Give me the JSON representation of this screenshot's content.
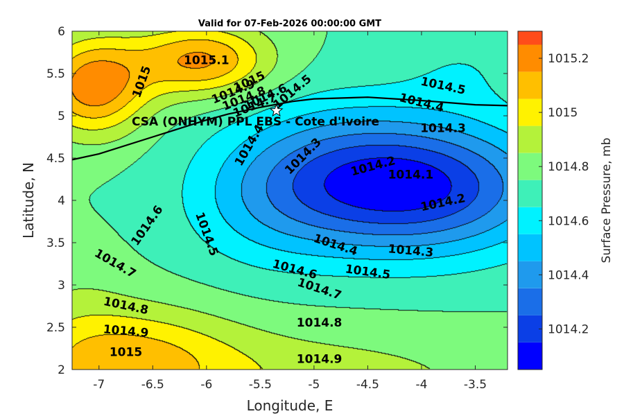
{
  "chart_data": {
    "type": "contour",
    "title": "Valid for 07-Feb-2026 00:00:00 GMT",
    "xlabel": "Longitude, E",
    "ylabel": "Latitude, N",
    "xlim": [
      -7.25,
      -3.2
    ],
    "ylim": [
      2,
      6
    ],
    "xticks": [
      -7,
      -6.5,
      -6,
      -5.5,
      -5,
      -4.5,
      -4,
      -3.5
    ],
    "yticks": [
      2,
      2.5,
      3,
      3.5,
      4,
      4.5,
      5,
      5.5,
      6
    ],
    "colorbar": {
      "label": "Surface Pressure, mb",
      "range": [
        1014.05,
        1015.3
      ],
      "levels": [
        1014.05,
        1014.15,
        1014.25,
        1014.35,
        1014.45,
        1014.55,
        1014.65,
        1014.75,
        1014.85,
        1014.95,
        1015.05,
        1015.15,
        1015.25,
        1015.3
      ],
      "colors": [
        "#0000ff",
        "#0b3fe6",
        "#1a6ee8",
        "#1f9aed",
        "#00c3ff",
        "#00f2ff",
        "#3ef0b8",
        "#7dfa7d",
        "#b4f23a",
        "#fff200",
        "#ffbf00",
        "#ff8c00",
        "#ff4c1a",
        "#ff0000"
      ],
      "ticks": [
        1014.2,
        1014.4,
        1014.6,
        1014.8,
        1015,
        1015.2
      ],
      "tick_labels": [
        "1014.2",
        "1014.4",
        "1014.6",
        "1014.8",
        "1015",
        "1015.2"
      ]
    },
    "pressure_field": {
      "background": 1014.75,
      "blobs": [
        {
          "lon": -4.0,
          "lat": 4.15,
          "slon": 0.85,
          "slat": 0.55,
          "amp": -0.58
        },
        {
          "lon": -4.9,
          "lat": 4.35,
          "slon": 0.7,
          "slat": 0.6,
          "amp": -0.22
        },
        {
          "lon": -5.5,
          "lat": 3.9,
          "slon": 0.55,
          "slat": 0.55,
          "amp": -0.12
        },
        {
          "lon": -3.6,
          "lat": 5.6,
          "slon": 0.45,
          "slat": 0.35,
          "amp": -0.08
        },
        {
          "lon": -7.05,
          "lat": 5.35,
          "slon": 0.35,
          "slat": 0.4,
          "amp": 0.47
        },
        {
          "lon": -6.05,
          "lat": 5.65,
          "slon": 0.45,
          "slat": 0.3,
          "amp": 0.42
        },
        {
          "lon": -6.8,
          "lat": 2.1,
          "slon": 0.75,
          "slat": 0.45,
          "amp": 0.33
        },
        {
          "lon": -5.0,
          "lat": 1.85,
          "slon": 1.3,
          "slat": 0.45,
          "amp": 0.15
        },
        {
          "lon": -7.2,
          "lat": 2.9,
          "slon": 0.35,
          "slat": 0.45,
          "amp": 0.05
        }
      ]
    },
    "contour_labels": [
      {
        "text": "1015.1",
        "lon": -6.0,
        "lat": 5.65,
        "angle": 0
      },
      {
        "text": "1015",
        "lon": -6.6,
        "lat": 5.4,
        "angle": -70
      },
      {
        "text": "1015",
        "lon": -5.6,
        "lat": 5.4,
        "angle": -25
      },
      {
        "text": "1014.9",
        "lon": -5.75,
        "lat": 5.28,
        "angle": -22
      },
      {
        "text": "1014.8",
        "lon": -5.65,
        "lat": 5.2,
        "angle": -22
      },
      {
        "text": "1014.7",
        "lon": -5.55,
        "lat": 5.12,
        "angle": -22
      },
      {
        "text": "1014.6",
        "lon": -5.45,
        "lat": 5.22,
        "angle": -25
      },
      {
        "text": "1014.5",
        "lon": -5.2,
        "lat": 5.28,
        "angle": -40
      },
      {
        "text": "1014.4",
        "lon": -5.6,
        "lat": 4.65,
        "angle": -60
      },
      {
        "text": "1014.3",
        "lon": -5.1,
        "lat": 4.52,
        "angle": -45
      },
      {
        "text": "1014.5",
        "lon": -3.8,
        "lat": 5.35,
        "angle": 12
      },
      {
        "text": "1014.4",
        "lon": -4.0,
        "lat": 5.15,
        "angle": 14
      },
      {
        "text": "1014.3",
        "lon": -3.8,
        "lat": 4.85,
        "angle": 0
      },
      {
        "text": "1014.2",
        "lon": -4.45,
        "lat": 4.4,
        "angle": -15
      },
      {
        "text": "1014.1",
        "lon": -4.1,
        "lat": 4.3,
        "angle": 0
      },
      {
        "text": "1014.2",
        "lon": -3.8,
        "lat": 3.97,
        "angle": -12
      },
      {
        "text": "1014.6",
        "lon": -6.55,
        "lat": 3.7,
        "angle": -55
      },
      {
        "text": "1014.5",
        "lon": -6.0,
        "lat": 3.6,
        "angle": 70
      },
      {
        "text": "1014.7",
        "lon": -6.85,
        "lat": 3.25,
        "angle": 30
      },
      {
        "text": "1014.4",
        "lon": -4.8,
        "lat": 3.47,
        "angle": 18
      },
      {
        "text": "1014.3",
        "lon": -4.1,
        "lat": 3.4,
        "angle": 5
      },
      {
        "text": "1014.6",
        "lon": -5.18,
        "lat": 3.18,
        "angle": 15
      },
      {
        "text": "1014.5",
        "lon": -4.5,
        "lat": 3.15,
        "angle": 8
      },
      {
        "text": "1014.7",
        "lon": -4.95,
        "lat": 2.95,
        "angle": 18
      },
      {
        "text": "1014.8",
        "lon": -6.75,
        "lat": 2.75,
        "angle": 12
      },
      {
        "text": "1014.9",
        "lon": -6.75,
        "lat": 2.45,
        "angle": 5
      },
      {
        "text": "1014.8",
        "lon": -4.95,
        "lat": 2.55,
        "angle": 0
      },
      {
        "text": "1015",
        "lon": -6.75,
        "lat": 2.2,
        "angle": 0
      },
      {
        "text": "1014.9",
        "lon": -4.95,
        "lat": 2.12,
        "angle": 0
      }
    ],
    "site": {
      "label": "CSA (ONHYM) PPL EBS  - Cote d'Ivoire",
      "lon": -5.35,
      "lat": 5.06,
      "marker": "star"
    },
    "coastline": [
      [
        -7.25,
        4.48
      ],
      [
        -7.0,
        4.55
      ],
      [
        -6.5,
        4.75
      ],
      [
        -6.0,
        4.95
      ],
      [
        -5.8,
        5.02
      ],
      [
        -5.5,
        5.1
      ],
      [
        -5.2,
        5.17
      ],
      [
        -5.0,
        5.2
      ],
      [
        -4.5,
        5.22
      ],
      [
        -4.0,
        5.18
      ],
      [
        -3.5,
        5.13
      ],
      [
        -3.2,
        5.12
      ]
    ]
  }
}
